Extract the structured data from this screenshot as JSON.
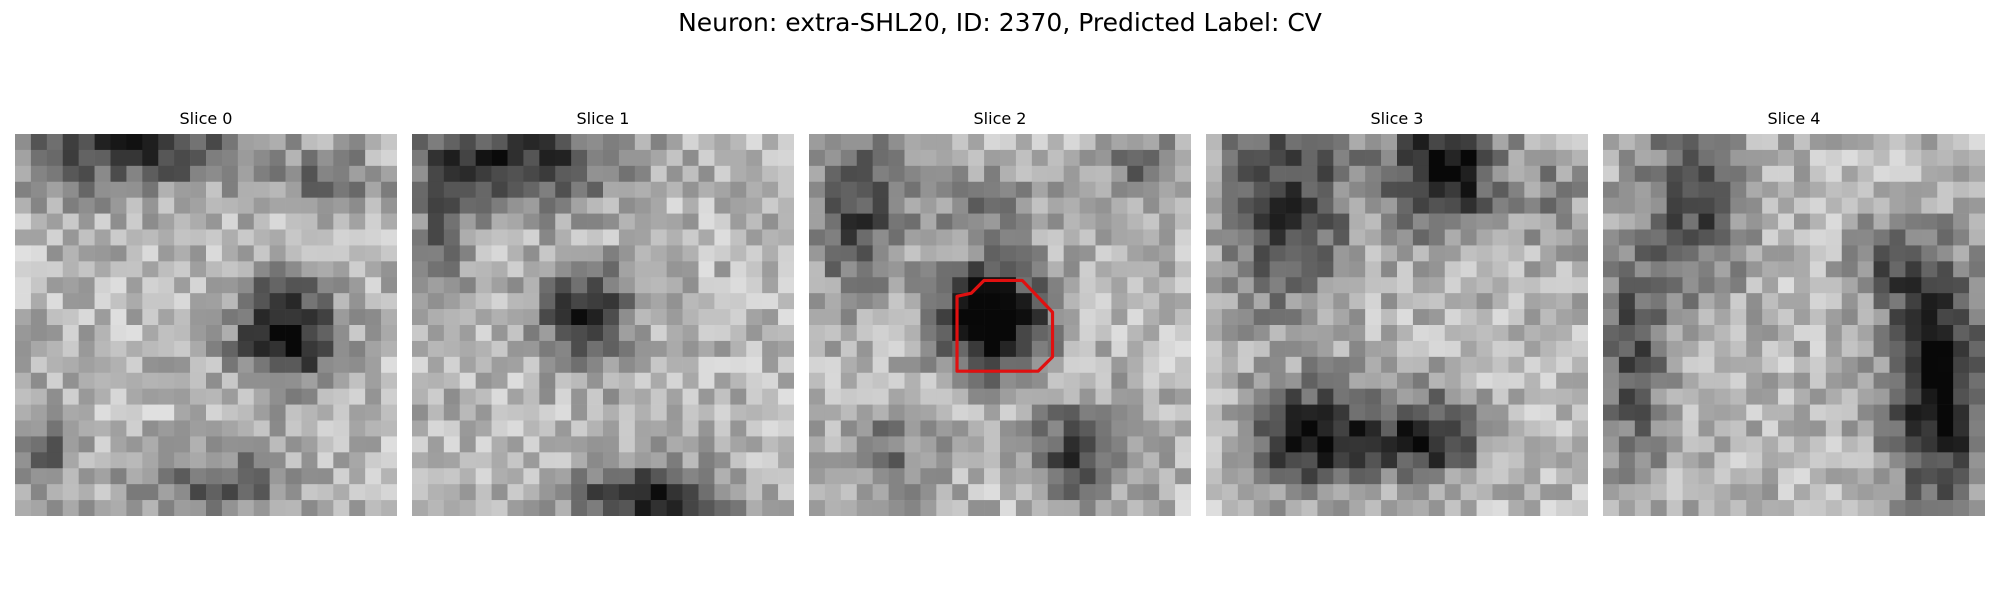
{
  "figure": {
    "title": "Neuron: extra-SHL20, ID: 2370, Predicted Label: CV"
  },
  "panels": [
    {
      "title": "Slice 0",
      "image": "grayscale-slice-0"
    },
    {
      "title": "Slice 1",
      "image": "grayscale-slice-1"
    },
    {
      "title": "Slice 2",
      "image": "grayscale-slice-2",
      "overlay": "segmentation-contour",
      "overlay_color": "#e01010"
    },
    {
      "title": "Slice 3",
      "image": "grayscale-slice-3"
    },
    {
      "title": "Slice 4",
      "image": "grayscale-slice-4"
    }
  ],
  "colors": {
    "background": "#ffffff",
    "contour": "#e01010"
  }
}
